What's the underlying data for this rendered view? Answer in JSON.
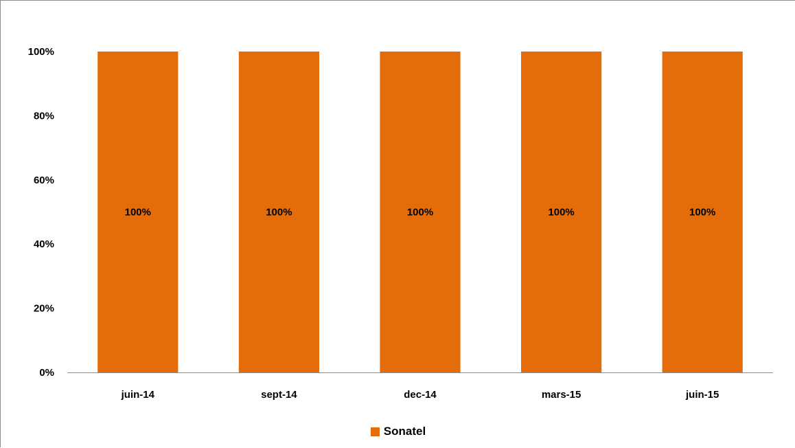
{
  "chart_data": {
    "type": "bar",
    "stacked": true,
    "title": "",
    "xlabel": "",
    "ylabel": "",
    "categories": [
      "juin-14",
      "sept-14",
      "dec-14",
      "mars-15",
      "juin-15"
    ],
    "series": [
      {
        "name": "Sonatel",
        "values": [
          100,
          100,
          100,
          100,
          100
        ],
        "data_labels": [
          "100%",
          "100%",
          "100%",
          "100%",
          "100%"
        ],
        "color": "#E46C0A"
      }
    ],
    "ylim": [
      0,
      100
    ],
    "y_ticks": [
      0,
      20,
      40,
      60,
      80,
      100
    ],
    "y_tick_labels": [
      "0%",
      "20%",
      "40%",
      "60%",
      "80%",
      "100%"
    ],
    "grid": false,
    "legend_position": "bottom"
  },
  "legend": {
    "label": "Sonatel"
  }
}
